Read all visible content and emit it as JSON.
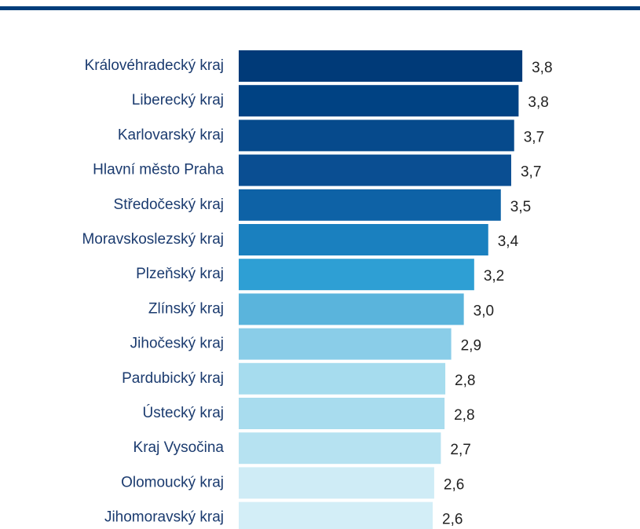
{
  "chart_data": {
    "type": "barh",
    "categories": [
      "Královéhradecký kraj",
      "Liberecký kraj",
      "Karlovarský kraj",
      "Hlavní město Praha",
      "Středočeský kraj",
      "Moravskoslezský kraj",
      "Plzeňský kraj",
      "Zlínský kraj",
      "Jihočeský kraj",
      "Pardubický kraj",
      "Ústecký kraj",
      "Kraj Vysočina",
      "Olomoucký kraj",
      "Jihomoravský kraj"
    ],
    "values": [
      3.83,
      3.78,
      3.72,
      3.68,
      3.54,
      3.37,
      3.18,
      3.04,
      2.87,
      2.79,
      2.78,
      2.73,
      2.64,
      2.62
    ],
    "value_labels": [
      "3,8",
      "3,8",
      "3,7",
      "3,7",
      "3,5",
      "3,4",
      "3,2",
      "3,0",
      "2,9",
      "2,8",
      "2,8",
      "2,7",
      "2,6",
      "2,6"
    ],
    "colors": [
      "#003a78",
      "#004283",
      "#064a8c",
      "#0a4e92",
      "#0e62a6",
      "#1a80bf",
      "#2e9fd4",
      "#5ab4dc",
      "#8acde8",
      "#a6dcee",
      "#a8dcee",
      "#b6e2f1",
      "#cfecf6",
      "#d3eef7"
    ],
    "xlim": [
      0,
      4.2
    ]
  }
}
